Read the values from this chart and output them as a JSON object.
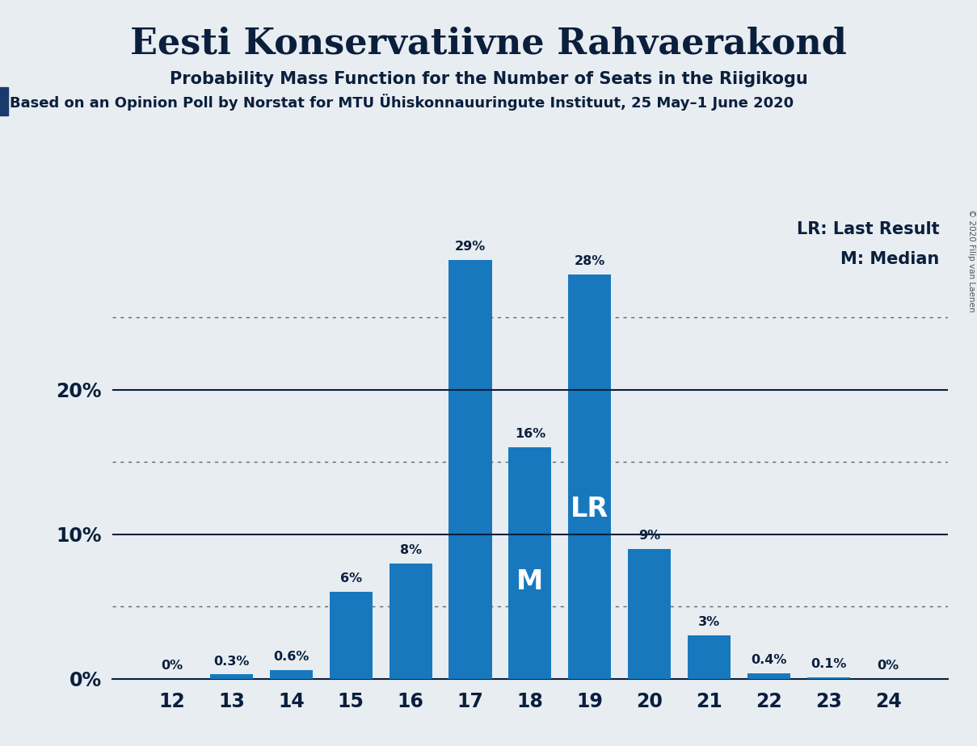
{
  "title": "Eesti Konservatiivne Rahvaerakond",
  "subtitle": "Probability Mass Function for the Number of Seats in the Riigikogu",
  "source_line": "Based on an Opinion Poll by Norstat for MTU Ühiskonnauuringute Instituut, 25 May–1 June 2020",
  "categories": [
    12,
    13,
    14,
    15,
    16,
    17,
    18,
    19,
    20,
    21,
    22,
    23,
    24
  ],
  "values": [
    0.0,
    0.3,
    0.6,
    6.0,
    8.0,
    29.0,
    16.0,
    28.0,
    9.0,
    3.0,
    0.4,
    0.1,
    0.0
  ],
  "labels": [
    "0%",
    "0.3%",
    "0.6%",
    "6%",
    "8%",
    "29%",
    "16%",
    "28%",
    "9%",
    "3%",
    "0.4%",
    "0.1%",
    "0%"
  ],
  "bar_color": "#1878be",
  "background_color": "#e8edf2",
  "median_bar": 18,
  "lr_bar": 19,
  "legend_lr": "LR: Last Result",
  "legend_m": "M: Median",
  "copyright": "© 2020 Filip van Laenen",
  "ylim_max": 32,
  "title_fontsize": 32,
  "subtitle_fontsize": 15,
  "source_fontsize": 13,
  "axis_label_color": "#0a1f3c",
  "tick_label_color": "#0a1f3c",
  "source_text_color": "#0a1f3c"
}
